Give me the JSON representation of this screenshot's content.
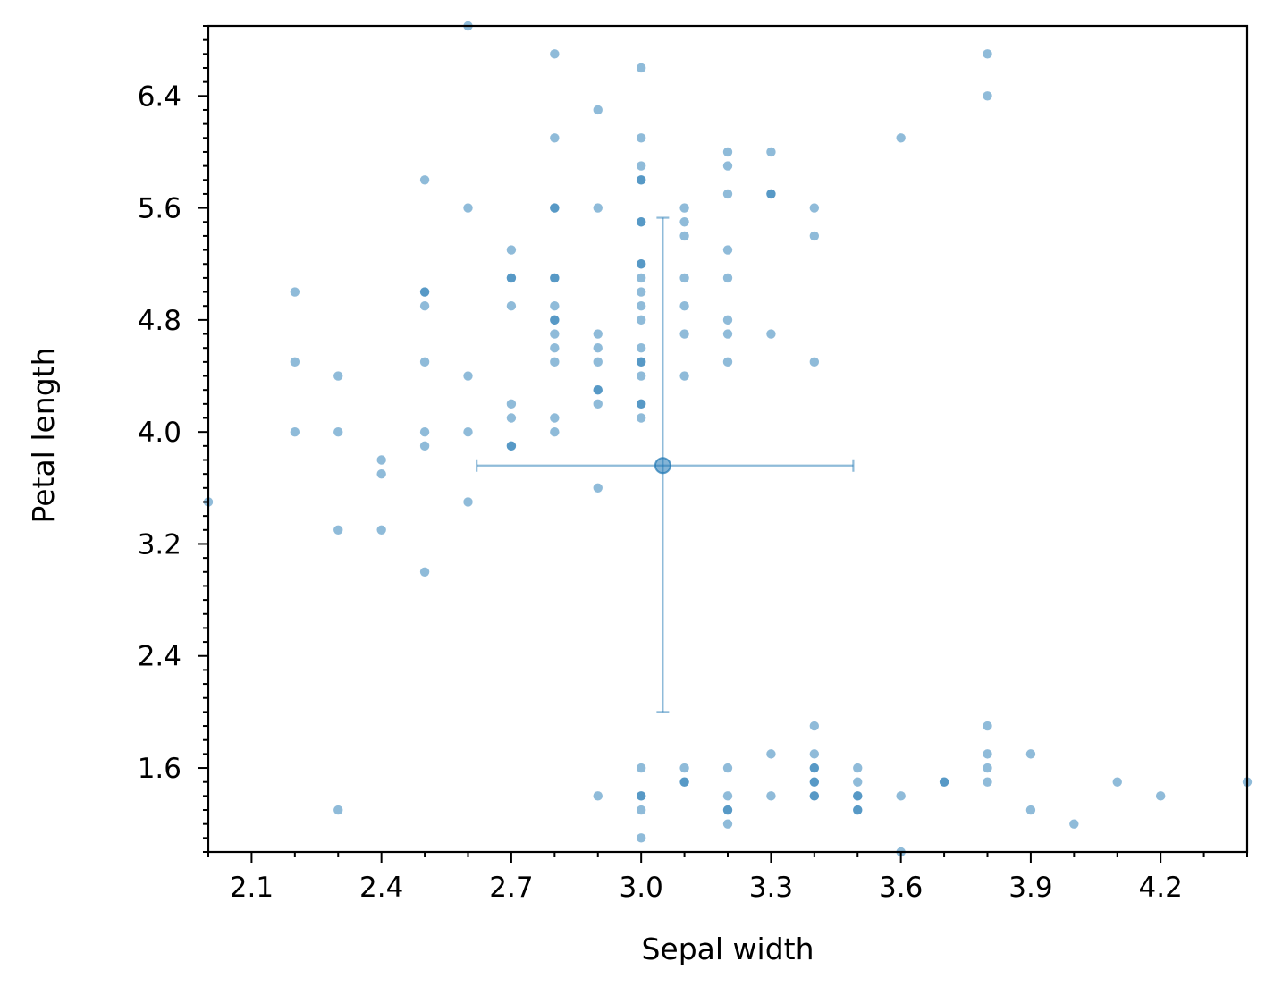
{
  "chart_data": {
    "type": "scatter",
    "title": "",
    "xlabel": "Sepal width",
    "ylabel": "Petal length",
    "xlim": [
      2.0,
      4.4
    ],
    "ylim": [
      1.0,
      6.9
    ],
    "x_ticks": [
      "2.1",
      "2.4",
      "2.7",
      "3.0",
      "3.3",
      "3.6",
      "3.9",
      "4.2"
    ],
    "y_ticks": [
      "1.6",
      "2.4",
      "3.2",
      "4.0",
      "4.8",
      "5.6",
      "6.4"
    ],
    "grid": false,
    "legend": "none",
    "point_color": "#1f77b4",
    "points": [
      [
        2.0,
        3.5
      ],
      [
        2.2,
        4.0
      ],
      [
        2.2,
        4.5
      ],
      [
        2.2,
        5.0
      ],
      [
        2.3,
        1.3
      ],
      [
        2.3,
        3.3
      ],
      [
        2.3,
        4.0
      ],
      [
        2.3,
        4.4
      ],
      [
        2.4,
        3.3
      ],
      [
        2.4,
        3.7
      ],
      [
        2.4,
        3.8
      ],
      [
        2.5,
        3.0
      ],
      [
        2.5,
        3.9
      ],
      [
        2.5,
        4.0
      ],
      [
        2.5,
        4.5
      ],
      [
        2.5,
        4.9
      ],
      [
        2.5,
        5.0
      ],
      [
        2.5,
        5.0
      ],
      [
        2.5,
        5.8
      ],
      [
        2.6,
        3.5
      ],
      [
        2.6,
        4.0
      ],
      [
        2.6,
        4.4
      ],
      [
        2.6,
        5.6
      ],
      [
        2.6,
        6.9
      ],
      [
        2.7,
        3.9
      ],
      [
        2.7,
        3.9
      ],
      [
        2.7,
        4.1
      ],
      [
        2.7,
        4.2
      ],
      [
        2.7,
        4.9
      ],
      [
        2.7,
        5.1
      ],
      [
        2.7,
        5.1
      ],
      [
        2.7,
        5.3
      ],
      [
        2.8,
        4.0
      ],
      [
        2.8,
        4.1
      ],
      [
        2.8,
        4.5
      ],
      [
        2.8,
        4.6
      ],
      [
        2.8,
        4.7
      ],
      [
        2.8,
        4.8
      ],
      [
        2.8,
        4.8
      ],
      [
        2.8,
        4.9
      ],
      [
        2.8,
        5.1
      ],
      [
        2.8,
        5.1
      ],
      [
        2.8,
        5.6
      ],
      [
        2.8,
        5.6
      ],
      [
        2.8,
        6.1
      ],
      [
        2.8,
        6.7
      ],
      [
        2.9,
        1.4
      ],
      [
        2.9,
        3.6
      ],
      [
        2.9,
        4.2
      ],
      [
        2.9,
        4.3
      ],
      [
        2.9,
        4.3
      ],
      [
        2.9,
        4.5
      ],
      [
        2.9,
        4.6
      ],
      [
        2.9,
        4.7
      ],
      [
        2.9,
        5.6
      ],
      [
        2.9,
        6.3
      ],
      [
        3.0,
        1.1
      ],
      [
        3.0,
        1.3
      ],
      [
        3.0,
        1.4
      ],
      [
        3.0,
        1.4
      ],
      [
        3.0,
        1.6
      ],
      [
        3.0,
        4.1
      ],
      [
        3.0,
        4.2
      ],
      [
        3.0,
        4.2
      ],
      [
        3.0,
        4.4
      ],
      [
        3.0,
        4.5
      ],
      [
        3.0,
        4.5
      ],
      [
        3.0,
        4.6
      ],
      [
        3.0,
        4.8
      ],
      [
        3.0,
        4.9
      ],
      [
        3.0,
        5.0
      ],
      [
        3.0,
        5.1
      ],
      [
        3.0,
        5.2
      ],
      [
        3.0,
        5.2
      ],
      [
        3.0,
        5.5
      ],
      [
        3.0,
        5.5
      ],
      [
        3.0,
        5.8
      ],
      [
        3.0,
        5.8
      ],
      [
        3.0,
        5.9
      ],
      [
        3.0,
        6.1
      ],
      [
        3.0,
        6.6
      ],
      [
        3.1,
        1.5
      ],
      [
        3.1,
        1.5
      ],
      [
        3.1,
        1.6
      ],
      [
        3.1,
        4.4
      ],
      [
        3.1,
        4.7
      ],
      [
        3.1,
        4.9
      ],
      [
        3.1,
        5.1
      ],
      [
        3.1,
        5.4
      ],
      [
        3.1,
        5.5
      ],
      [
        3.1,
        5.6
      ],
      [
        3.2,
        1.2
      ],
      [
        3.2,
        1.3
      ],
      [
        3.2,
        1.3
      ],
      [
        3.2,
        1.4
      ],
      [
        3.2,
        1.6
      ],
      [
        3.2,
        4.5
      ],
      [
        3.2,
        4.7
      ],
      [
        3.2,
        4.8
      ],
      [
        3.2,
        5.1
      ],
      [
        3.2,
        5.3
      ],
      [
        3.2,
        5.7
      ],
      [
        3.2,
        5.9
      ],
      [
        3.2,
        6.0
      ],
      [
        3.3,
        1.4
      ],
      [
        3.3,
        1.7
      ],
      [
        3.3,
        4.7
      ],
      [
        3.3,
        5.7
      ],
      [
        3.3,
        5.7
      ],
      [
        3.3,
        6.0
      ],
      [
        3.4,
        1.4
      ],
      [
        3.4,
        1.4
      ],
      [
        3.4,
        1.5
      ],
      [
        3.4,
        1.5
      ],
      [
        3.4,
        1.6
      ],
      [
        3.4,
        1.6
      ],
      [
        3.4,
        1.7
      ],
      [
        3.4,
        1.9
      ],
      [
        3.4,
        4.5
      ],
      [
        3.4,
        5.4
      ],
      [
        3.4,
        5.6
      ],
      [
        3.5,
        1.3
      ],
      [
        3.5,
        1.3
      ],
      [
        3.5,
        1.4
      ],
      [
        3.5,
        1.4
      ],
      [
        3.5,
        1.5
      ],
      [
        3.5,
        1.6
      ],
      [
        3.6,
        1.0
      ],
      [
        3.6,
        1.4
      ],
      [
        3.6,
        6.1
      ],
      [
        3.7,
        1.5
      ],
      [
        3.7,
        1.5
      ],
      [
        3.8,
        1.5
      ],
      [
        3.8,
        1.6
      ],
      [
        3.8,
        1.7
      ],
      [
        3.8,
        1.9
      ],
      [
        3.8,
        6.4
      ],
      [
        3.8,
        6.7
      ],
      [
        3.9,
        1.3
      ],
      [
        3.9,
        1.7
      ],
      [
        4.0,
        1.2
      ],
      [
        4.1,
        1.5
      ],
      [
        4.2,
        1.4
      ],
      [
        4.4,
        1.5
      ]
    ],
    "mean_point": {
      "x": 3.05,
      "y": 3.76
    },
    "error_bars": {
      "x": [
        2.62,
        3.49
      ],
      "y": [
        2.0,
        5.53
      ]
    }
  }
}
